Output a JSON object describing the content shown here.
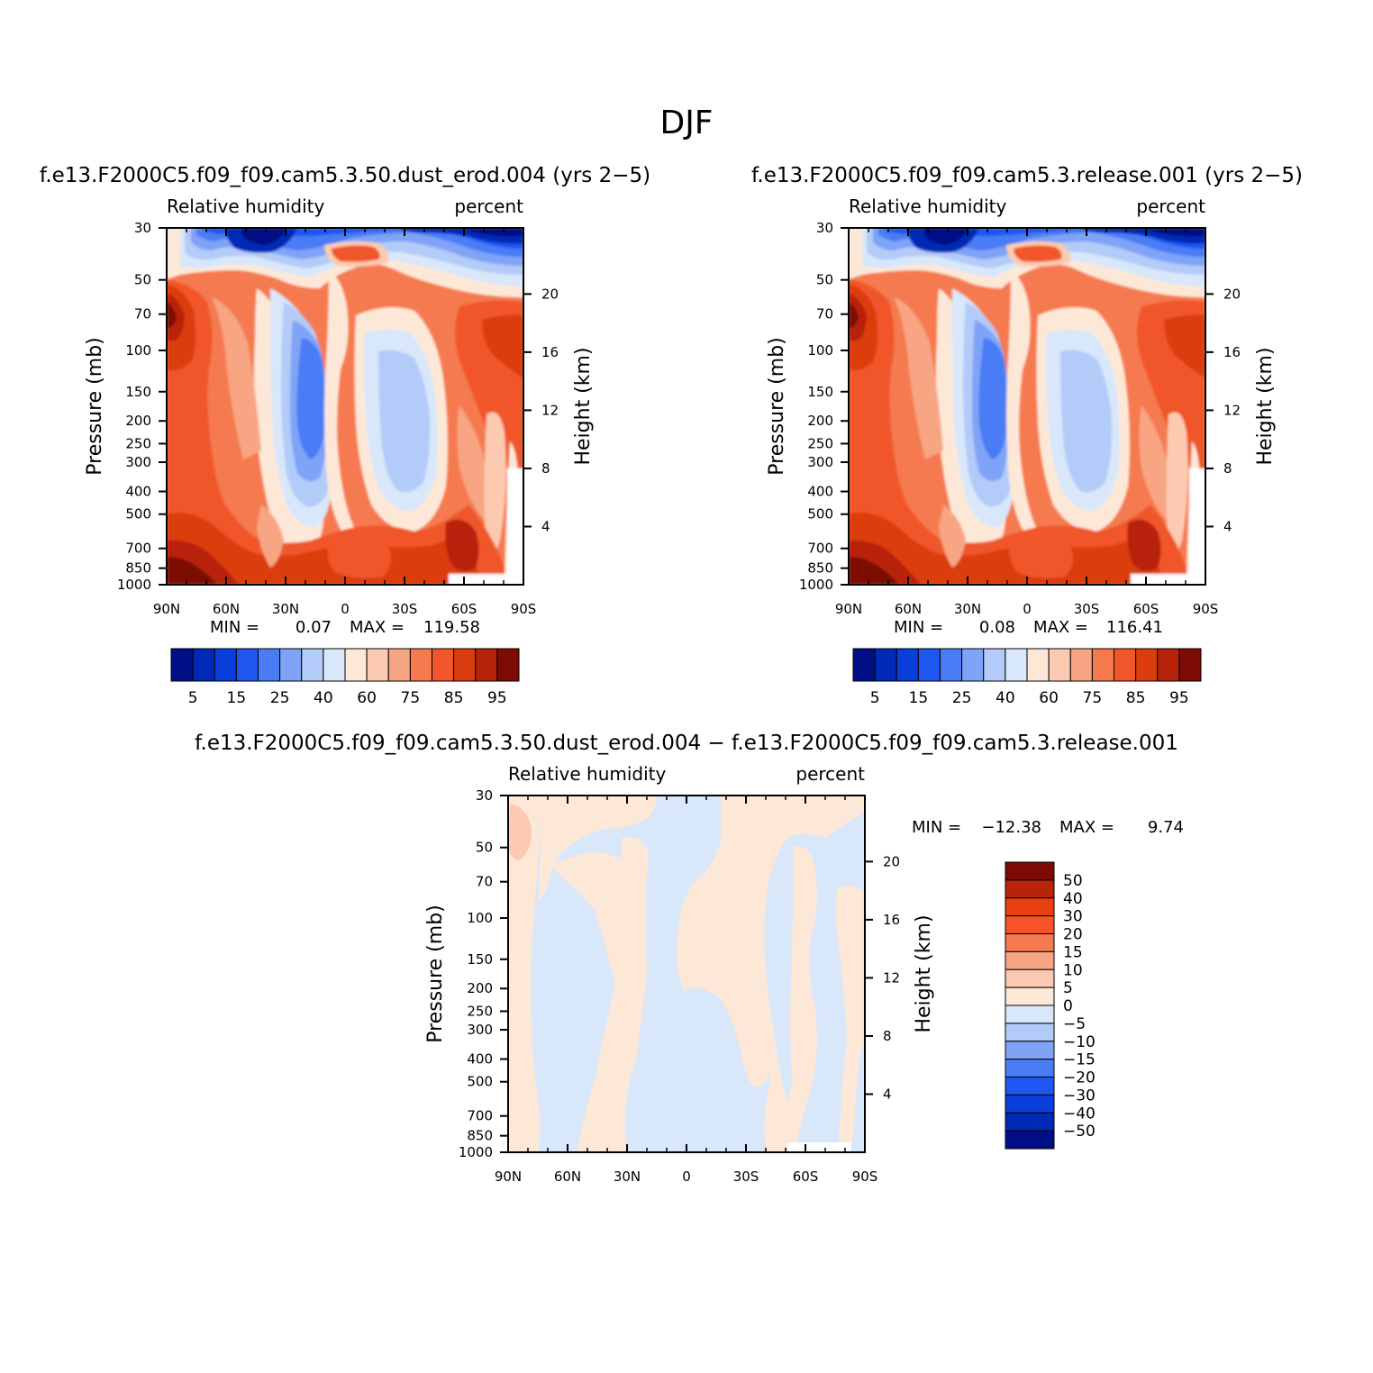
{
  "figure": {
    "title": "DJF"
  },
  "chart_data": [
    {
      "type": "heatmap",
      "subtitle": "f.e13.F2000C5.f09_f09.cam5.3.50.dust_erod.004 (yrs 2−5)",
      "left_label": "Relative humidity",
      "right_label": "percent",
      "ylabel": "Pressure (mb)",
      "y2label": "Height (km)",
      "x_ticks": [
        "90N",
        "60N",
        "30N",
        "0",
        "30S",
        "60S",
        "90S"
      ],
      "y_ticks": [
        "30",
        "50",
        "70",
        "100",
        "150",
        "200",
        "250",
        "300",
        "400",
        "500",
        "700",
        "850",
        "1000"
      ],
      "y2_ticks": [
        "20",
        "16",
        "12",
        "8",
        "4"
      ],
      "min_label": "MIN =",
      "min_value": "0.07",
      "max_label": "MAX =",
      "max_value": "119.58",
      "colorbar_labels": [
        "5",
        "15",
        "25",
        "40",
        "60",
        "75",
        "85",
        "95"
      ]
    },
    {
      "type": "heatmap",
      "subtitle": "f.e13.F2000C5.f09_f09.cam5.3.release.001 (yrs 2−5)",
      "left_label": "Relative humidity",
      "right_label": "percent",
      "ylabel": "Pressure (mb)",
      "y2label": "Height (km)",
      "x_ticks": [
        "90N",
        "60N",
        "30N",
        "0",
        "30S",
        "60S",
        "90S"
      ],
      "y_ticks": [
        "30",
        "50",
        "70",
        "100",
        "150",
        "200",
        "250",
        "300",
        "400",
        "500",
        "700",
        "850",
        "1000"
      ],
      "y2_ticks": [
        "20",
        "16",
        "12",
        "8",
        "4"
      ],
      "min_label": "MIN =",
      "min_value": "0.08",
      "max_label": "MAX =",
      "max_value": "116.41",
      "colorbar_labels": [
        "5",
        "15",
        "25",
        "40",
        "60",
        "75",
        "85",
        "95"
      ]
    },
    {
      "type": "heatmap",
      "subtitle": "f.e13.F2000C5.f09_f09.cam5.3.50.dust_erod.004 − f.e13.F2000C5.f09_f09.cam5.3.release.001",
      "left_label": "Relative humidity",
      "right_label": "percent",
      "ylabel": "Pressure (mb)",
      "y2label": "Height (km)",
      "x_ticks": [
        "90N",
        "60N",
        "30N",
        "0",
        "30S",
        "60S",
        "90S"
      ],
      "y_ticks": [
        "30",
        "50",
        "70",
        "100",
        "150",
        "200",
        "250",
        "300",
        "400",
        "500",
        "700",
        "850",
        "1000"
      ],
      "y2_ticks": [
        "20",
        "16",
        "12",
        "8",
        "4"
      ],
      "min_label": "MIN =",
      "min_value": "−12.38",
      "max_label": "MAX =",
      "max_value": "9.74",
      "colorbar_labels": [
        "50",
        "40",
        "30",
        "20",
        "15",
        "10",
        "5",
        "0",
        "−5",
        "−10",
        "−15",
        "−20",
        "−30",
        "−40",
        "−50"
      ]
    }
  ],
  "colors": {
    "rh_scale": [
      "#000f85",
      "#0029b5",
      "#0a3fdc",
      "#1f56f0",
      "#4a7cf5",
      "#7fa3f7",
      "#b3cbf8",
      "#d8e7fa",
      "#fde8d8",
      "#fccab0",
      "#f8a583",
      "#f57a4f",
      "#f0562a",
      "#db3d0f",
      "#b82409",
      "#7d0a03"
    ],
    "diff_scale": [
      "#7d0a03",
      "#b82409",
      "#e8400f",
      "#f7542a",
      "#f57a4f",
      "#f8a583",
      "#fccab0",
      "#fde8d8",
      "#d8e7fa",
      "#b3cbf8",
      "#7fa3f7",
      "#4a7cf5",
      "#1f56f0",
      "#0a3fdc",
      "#0029b5",
      "#000f85"
    ]
  }
}
